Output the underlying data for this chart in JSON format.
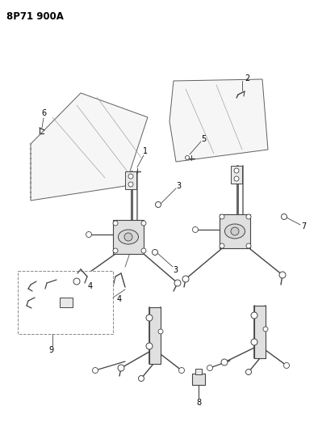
{
  "title": "8P71 900A",
  "bg_color": "#ffffff",
  "line_color": "#444444",
  "text_color": "#000000",
  "title_fontsize": 8.5,
  "label_fontsize": 7,
  "fig_width": 3.94,
  "fig_height": 5.33,
  "dpi": 100
}
